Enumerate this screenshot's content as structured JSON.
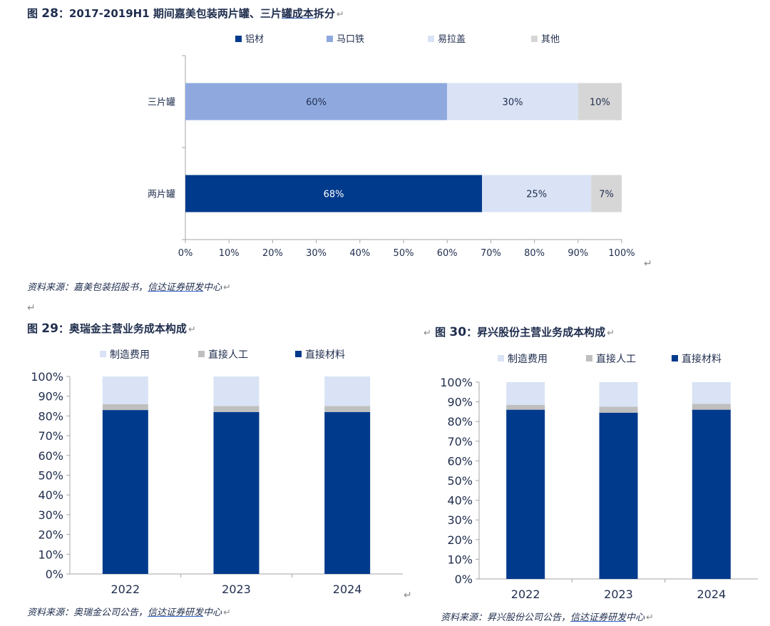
{
  "figures": [
    {
      "id": "fig28",
      "prefix": "图",
      "number": "28",
      "title_main": "：2017-2019H1 期间嘉美包装两片罐、三片",
      "title_underlined": "罐成本",
      "title_end": "拆分",
      "source_prefix": "资料来源：嘉美包装招股书，",
      "source_underlined": "信达证券研发",
      "source_suffix": "中心"
    },
    {
      "id": "fig29",
      "prefix": "图",
      "number": "29",
      "title_main": "：奥瑞金主营业务成本构成",
      "source_prefix": "资料来源：奥瑞金公司公告，",
      "source_underlined": "信达证券研发",
      "source_suffix": "中心"
    },
    {
      "id": "fig30",
      "prefix": "图",
      "number": "30",
      "title_main": "：昇兴股份主营业务成本构成",
      "source_prefix": "资料来源：昇兴股份公司公告，",
      "source_underlined": "信达证券研发",
      "source_suffix": "中心"
    }
  ],
  "return_mark": "↵",
  "colors": {
    "dark_blue": "#003a8c",
    "mid_blue": "#8fa9df",
    "light_blue": "#d9e3f5",
    "grey": "#d6d6d6",
    "grey_mid": "#bfbfbf",
    "axis": "#a6a6a6",
    "text": "#1f2d4d"
  },
  "chart_data": [
    {
      "type": "bar",
      "orientation": "horizontal",
      "stacked": true,
      "categories": [
        "三片罐",
        "两片罐"
      ],
      "series": [
        {
          "name": "铝材",
          "values": [
            0,
            68
          ],
          "color": "#003a8c"
        },
        {
          "name": "马口铁",
          "values": [
            60,
            0
          ],
          "color": "#8fa9df"
        },
        {
          "name": "易拉盖",
          "values": [
            30,
            25
          ],
          "color": "#d9e3f5"
        },
        {
          "name": "其他",
          "values": [
            10,
            7
          ],
          "color": "#d6d6d6"
        }
      ],
      "data_labels": [
        [
          "",
          "60%",
          "30%",
          "10%"
        ],
        [
          "68%",
          "",
          "25%",
          "7%"
        ]
      ],
      "xlim": [
        0,
        100
      ],
      "x_ticks": [
        "0%",
        "10%",
        "20%",
        "30%",
        "40%",
        "50%",
        "60%",
        "70%",
        "80%",
        "90%",
        "100%"
      ],
      "legend_position": "top",
      "grid": false
    },
    {
      "type": "bar",
      "stacked": true,
      "categories": [
        "2022",
        "2023",
        "2024"
      ],
      "series": [
        {
          "name": "直接材料",
          "values": [
            83,
            82,
            82
          ],
          "color": "#003a8c"
        },
        {
          "name": "直接人工",
          "values": [
            3,
            3,
            3
          ],
          "color": "#bfbfbf"
        },
        {
          "name": "制造费用",
          "values": [
            14,
            15,
            15
          ],
          "color": "#d9e3f5"
        }
      ],
      "legend_order": [
        "制造费用",
        "直接人工",
        "直接材料"
      ],
      "ylim": [
        0,
        100
      ],
      "y_ticks": [
        "0%",
        "10%",
        "20%",
        "30%",
        "40%",
        "50%",
        "60%",
        "70%",
        "80%",
        "90%",
        "100%"
      ],
      "legend_position": "top",
      "grid": false
    },
    {
      "type": "bar",
      "stacked": true,
      "categories": [
        "2022",
        "2023",
        "2024"
      ],
      "series": [
        {
          "name": "直接材料",
          "values": [
            86,
            84.5,
            86
          ],
          "color": "#003a8c"
        },
        {
          "name": "直接人工",
          "values": [
            2.5,
            3,
            3
          ],
          "color": "#bfbfbf"
        },
        {
          "name": "制造费用",
          "values": [
            11.5,
            12.5,
            11
          ],
          "color": "#d9e3f5"
        }
      ],
      "legend_order": [
        "制造费用",
        "直接人工",
        "直接材料"
      ],
      "ylim": [
        0,
        100
      ],
      "y_ticks": [
        "0%",
        "10%",
        "20%",
        "30%",
        "40%",
        "50%",
        "60%",
        "70%",
        "80%",
        "90%",
        "100%"
      ],
      "legend_position": "top",
      "grid": false
    }
  ]
}
